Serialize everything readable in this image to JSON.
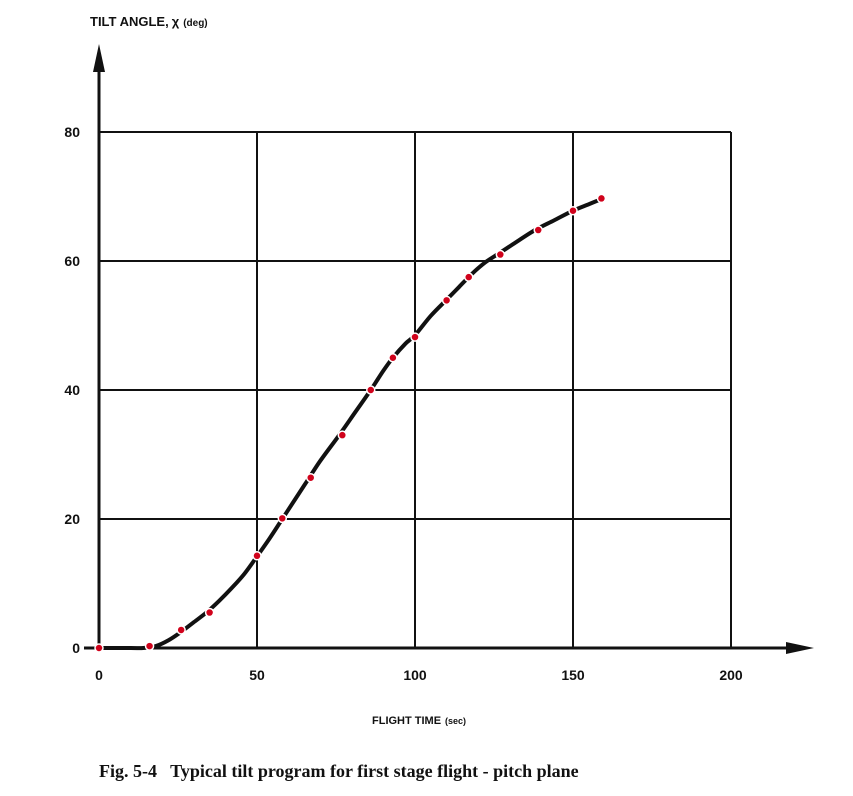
{
  "chart_data": {
    "type": "line",
    "ylabel_main": "TILT ANGLE,",
    "ylabel_symbol": "χ",
    "ylabel_unit": "(deg)",
    "xlabel_main": "FLIGHT TIME",
    "xlabel_unit": "(sec)",
    "caption": "Fig. 5-4   Typical tilt program for first stage flight - pitch plane",
    "xlim": [
      0,
      200
    ],
    "ylim": [
      0,
      80
    ],
    "x_ticks": [
      0,
      50,
      100,
      150,
      200
    ],
    "y_ticks": [
      0,
      20,
      40,
      60,
      80
    ],
    "grid": true,
    "colors": {
      "curve": "#111111",
      "points": "#d0021b",
      "grid": "#111111"
    },
    "series": [
      {
        "values": [
          [
            0,
            0
          ],
          [
            10,
            0
          ],
          [
            14,
            0
          ],
          [
            18,
            0.3
          ],
          [
            22,
            1.2
          ],
          [
            26,
            2.5
          ],
          [
            30,
            4.0
          ],
          [
            34,
            5.5
          ],
          [
            38,
            7.3
          ],
          [
            42,
            9.3
          ],
          [
            46,
            11.5
          ],
          [
            50,
            14.2
          ],
          [
            54,
            17.0
          ],
          [
            58,
            20.0
          ],
          [
            62,
            23.0
          ],
          [
            66,
            26.0
          ],
          [
            70,
            29.0
          ],
          [
            76,
            33.0
          ],
          [
            81,
            36.5
          ],
          [
            86,
            40.0
          ],
          [
            90,
            43.0
          ],
          [
            93,
            45.0
          ],
          [
            97,
            47.2
          ],
          [
            100,
            48.5
          ],
          [
            105,
            51.5
          ],
          [
            110,
            54.0
          ],
          [
            114,
            56.0
          ],
          [
            118,
            58.0
          ],
          [
            122,
            59.7
          ],
          [
            126,
            61.0
          ],
          [
            131,
            62.6
          ],
          [
            138,
            64.8
          ],
          [
            144,
            66.3
          ],
          [
            150,
            67.8
          ],
          [
            155,
            68.8
          ],
          [
            159,
            69.6
          ]
        ]
      },
      {
        "markers": [
          [
            0,
            0
          ],
          [
            16,
            0.3
          ],
          [
            26,
            2.8
          ],
          [
            35,
            5.5
          ],
          [
            50,
            14.3
          ],
          [
            58,
            20.1
          ],
          [
            67,
            26.4
          ],
          [
            77,
            33.0
          ],
          [
            86,
            40.0
          ],
          [
            93,
            45.0
          ],
          [
            100,
            48.2
          ],
          [
            110,
            53.9
          ],
          [
            117,
            57.5
          ],
          [
            127,
            61.0
          ],
          [
            139,
            64.8
          ],
          [
            150,
            67.8
          ],
          [
            159,
            69.7
          ]
        ]
      }
    ]
  }
}
